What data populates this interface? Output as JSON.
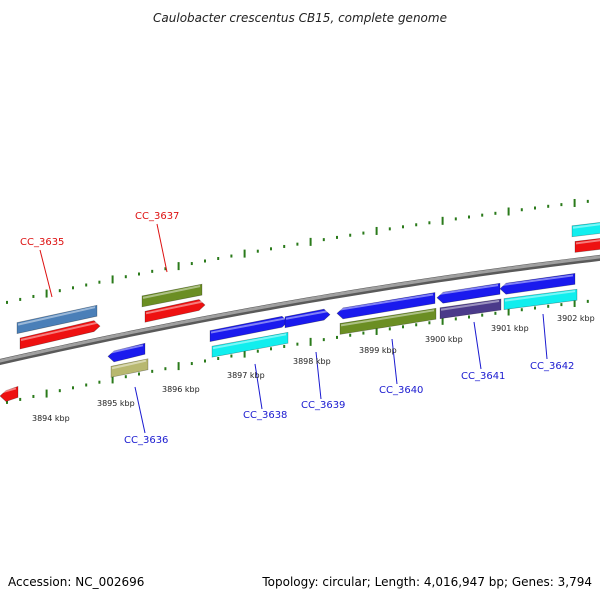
{
  "title": "Caulobacter crescentus CB15, complete genome",
  "footer": {
    "accession": "Accession: NC_002696",
    "summary": "Topology: circular; Length: 4,016,947 bp; Genes: 3,794"
  },
  "colors": {
    "backbone": "#8a8a8a",
    "tick": "#2a7a1a",
    "label_top": "#dd1111",
    "label_bottom": "#1a1ad0",
    "red": "#ee1111",
    "blue": "#1a1aee",
    "cyan": "#11eeee",
    "olive": "#6b8e23",
    "steelblue": "#4a7fb8",
    "khaki": "#b8b870",
    "darkslate": "#4a3a8a"
  },
  "scale_labels": [
    "3894 kbp",
    "3895 kbp",
    "3896 kbp",
    "3897 kbp",
    "3898 kbp",
    "3899 kbp",
    "3900 kbp",
    "3901 kbp",
    "3902 kbp"
  ],
  "gene_labels_top": [
    "CC_3635",
    "CC_3637"
  ],
  "gene_labels_bottom": [
    "CC_3636",
    "CC_3638",
    "CC_3639",
    "CC_3640",
    "CC_3641",
    "CC_3642"
  ],
  "features": [
    {
      "color": "red",
      "strand": "reverse",
      "lane": "inner-low",
      "start": 0,
      "end": 18
    },
    {
      "color": "steelblue",
      "strand": "none",
      "lane": "outer-high",
      "start": 17,
      "end": 97
    },
    {
      "color": "red",
      "strand": "forward",
      "lane": "outer-low",
      "start": 20,
      "end": 100
    },
    {
      "color": "blue",
      "strand": "reverse",
      "lane": "inner-high",
      "start": 108,
      "end": 145
    },
    {
      "color": "khaki",
      "strand": "none",
      "lane": "inner-low",
      "start": 111,
      "end": 148
    },
    {
      "color": "olive",
      "strand": "none",
      "lane": "outer-high",
      "start": 142,
      "end": 202
    },
    {
      "color": "red",
      "strand": "forward",
      "lane": "outer-low",
      "start": 145,
      "end": 205
    },
    {
      "color": "blue",
      "strand": "forward",
      "lane": "inner-high",
      "start": 210,
      "end": 288
    },
    {
      "color": "cyan",
      "strand": "none",
      "lane": "inner-low",
      "start": 212,
      "end": 288
    },
    {
      "color": "blue",
      "strand": "forward",
      "lane": "inner-high",
      "start": 285,
      "end": 330
    },
    {
      "color": "blue",
      "strand": "reverse",
      "lane": "inner-high",
      "start": 337,
      "end": 435
    },
    {
      "color": "olive",
      "strand": "none",
      "lane": "inner-low",
      "start": 340,
      "end": 436
    },
    {
      "color": "blue",
      "strand": "reverse",
      "lane": "inner-high",
      "start": 437,
      "end": 500
    },
    {
      "color": "darkslate",
      "strand": "none",
      "lane": "inner-low",
      "start": 440,
      "end": 501
    },
    {
      "color": "blue",
      "strand": "reverse",
      "lane": "inner-high",
      "start": 500,
      "end": 575
    },
    {
      "color": "cyan",
      "strand": "none",
      "lane": "inner-low",
      "start": 504,
      "end": 577
    },
    {
      "color": "cyan",
      "strand": "none",
      "lane": "outer-high",
      "start": 572,
      "end": 610
    },
    {
      "color": "red",
      "strand": "none",
      "lane": "outer-low",
      "start": 575,
      "end": 610
    }
  ]
}
